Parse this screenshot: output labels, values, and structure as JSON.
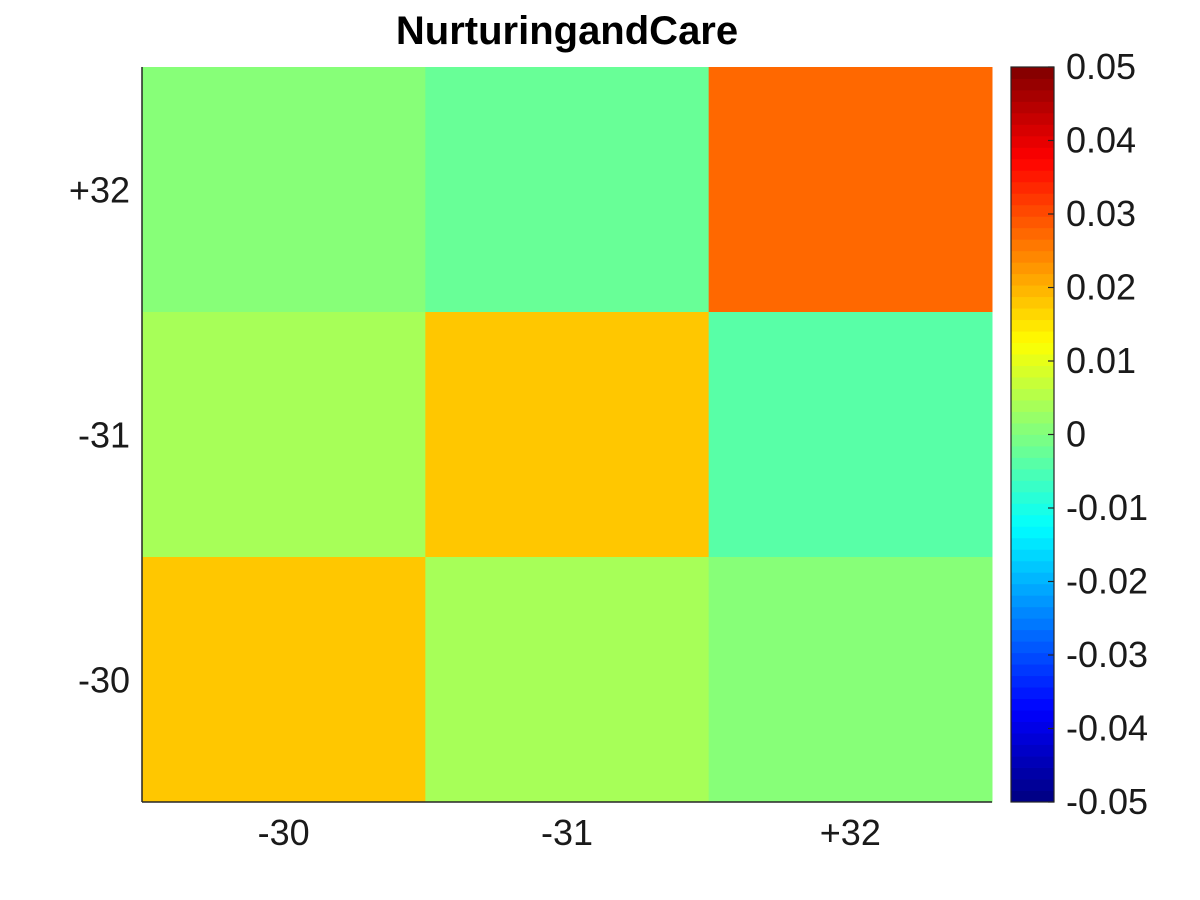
{
  "chart_data": {
    "type": "heatmap",
    "title": "NurturingandCare",
    "xlabel": "",
    "ylabel": "",
    "x_categories": [
      "-30",
      "-31",
      "+32"
    ],
    "y_categories": [
      "+32",
      "-31",
      "-30"
    ],
    "values": [
      [
        0.001,
        -0.003,
        0.027
      ],
      [
        0.004,
        0.018,
        -0.004
      ],
      [
        0.018,
        0.004,
        0.001
      ]
    ],
    "colorbar": {
      "colormap": "jet",
      "range": [
        -0.05,
        0.05
      ],
      "ticks": [
        "0.05",
        "0.04",
        "0.03",
        "0.02",
        "0.01",
        "0",
        "-0.01",
        "-0.02",
        "-0.03",
        "-0.04",
        "-0.05"
      ]
    },
    "grid": false,
    "legend": "none"
  }
}
